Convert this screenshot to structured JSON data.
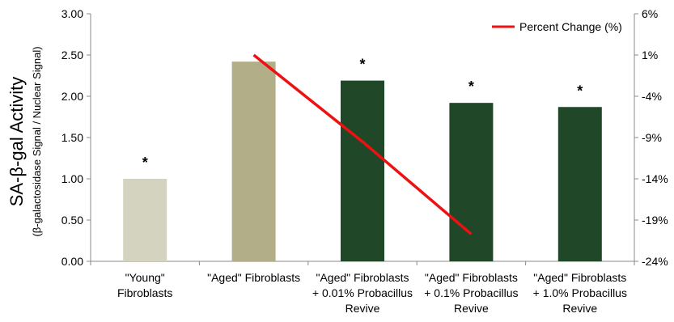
{
  "chart_data": {
    "type": "bar",
    "ylabel": "SA-β-gal Activity",
    "ylabel_sub": "(β-galactosidase Signal / Nuclear Signal)",
    "categories": [
      [
        "\"Young\"",
        "Fibroblasts"
      ],
      [
        "\"Aged\" Fibroblasts"
      ],
      [
        "\"Aged\" Fibroblasts",
        "+ 0.01% Probacillus",
        "Revive"
      ],
      [
        "\"Aged\" Fibroblasts",
        "+ 0.1% Probacillus",
        "Revive"
      ],
      [
        "\"Aged\" Fibroblasts",
        "+ 1.0% Probacillus",
        "Revive"
      ]
    ],
    "values": [
      1.0,
      2.42,
      2.19,
      1.92,
      1.87
    ],
    "bar_colors": [
      "#d3d3c0",
      "#b2ae88",
      "#1f4728",
      "#1f4728",
      "#1f4728"
    ],
    "significance": [
      "*",
      "",
      "*",
      "*",
      "*"
    ],
    "ylim": [
      0,
      3
    ],
    "yticks": [
      "0.00",
      "0.50",
      "1.00",
      "1.50",
      "2.00",
      "2.50",
      "3.00"
    ],
    "y2lim": [
      -24,
      6
    ],
    "y2ticks": [
      "-24%",
      "-19%",
      "-14%",
      "-9%",
      "-4%",
      "1%",
      "6%"
    ],
    "line_series": {
      "name": "Percent Change (%)",
      "color": "#ee1111",
      "points": [
        {
          "category_index": 1,
          "value": 1.0
        },
        {
          "category_index": 2,
          "value": -9.5
        },
        {
          "category_index": 3,
          "value": -20.7
        }
      ]
    },
    "legend_position": "top-right",
    "grid": false
  }
}
